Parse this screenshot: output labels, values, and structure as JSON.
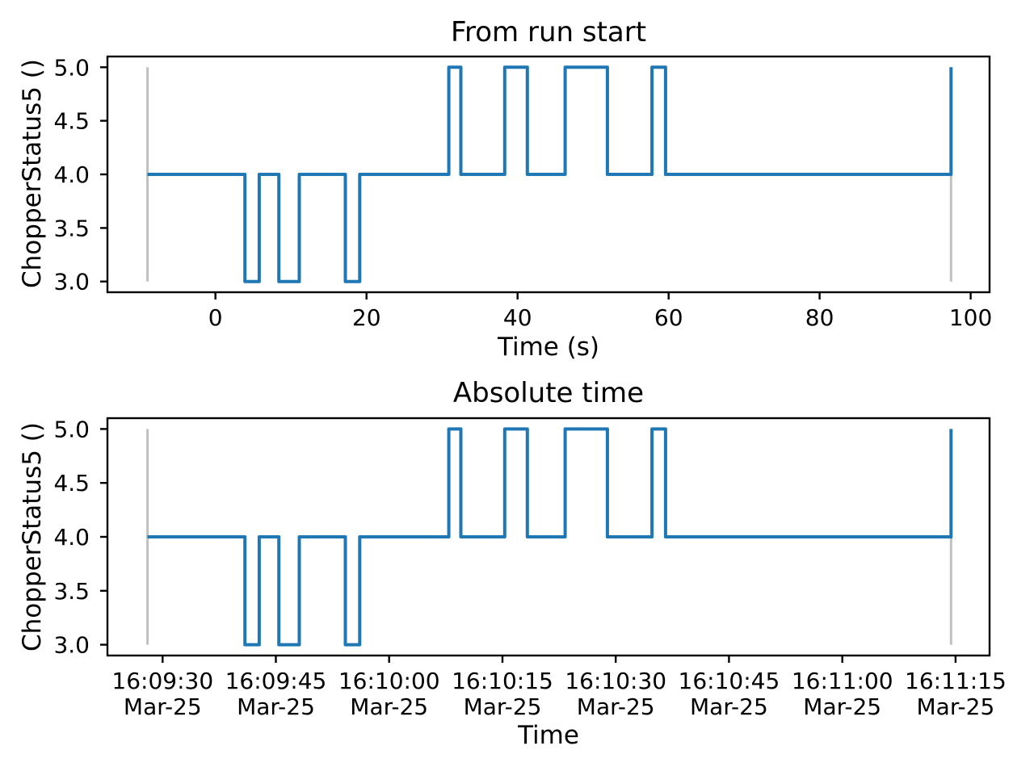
{
  "figure": {
    "background_color": "#ffffff",
    "axes_frame_color": "#000000",
    "text_color": "#000000",
    "series_color": "#1f77b4",
    "boundary_line_color": "#c0c0c0"
  },
  "chart_data": [
    {
      "type": "line",
      "line_style": "step",
      "title": "From run start",
      "xlabel": "Time (s)",
      "ylabel": "ChopperStatus5 ()",
      "xlim": [
        -14.3,
        102.5
      ],
      "ylim": [
        2.9,
        5.1
      ],
      "grid": false,
      "legend": "none",
      "xticks": {
        "values": [
          0,
          20,
          40,
          60,
          80,
          100
        ],
        "labels": [
          "0",
          "20",
          "40",
          "60",
          "80",
          "100"
        ]
      },
      "yticks": {
        "values": [
          5.0,
          4.5,
          4.0,
          3.5,
          3.0
        ],
        "labels": [
          "5.0",
          "4.5",
          "4.0",
          "3.5",
          "3.0"
        ]
      },
      "series": [
        {
          "name": "ChopperStatus5",
          "color": "#1f77b4",
          "points": [
            [
              -9.0,
              4
            ],
            [
              3.9,
              4
            ],
            [
              3.9,
              3
            ],
            [
              5.8,
              3
            ],
            [
              5.8,
              4
            ],
            [
              8.4,
              4
            ],
            [
              8.4,
              3
            ],
            [
              11.1,
              3
            ],
            [
              11.1,
              4
            ],
            [
              17.2,
              4
            ],
            [
              17.2,
              3
            ],
            [
              19.1,
              3
            ],
            [
              19.1,
              4
            ],
            [
              30.9,
              4
            ],
            [
              30.9,
              5
            ],
            [
              32.5,
              5
            ],
            [
              32.5,
              4
            ],
            [
              38.3,
              4
            ],
            [
              38.3,
              5
            ],
            [
              41.3,
              5
            ],
            [
              41.3,
              4
            ],
            [
              46.3,
              4
            ],
            [
              46.3,
              5
            ],
            [
              51.9,
              5
            ],
            [
              51.9,
              4
            ],
            [
              57.8,
              4
            ],
            [
              57.8,
              5
            ],
            [
              59.6,
              5
            ],
            [
              59.6,
              4
            ],
            [
              97.4,
              4
            ],
            [
              97.4,
              5
            ]
          ]
        }
      ],
      "boundary_vlines": {
        "x": [
          -9.0,
          97.4
        ],
        "y_span": [
          3.0,
          5.0
        ],
        "color": "#c0c0c0"
      }
    },
    {
      "type": "line",
      "line_style": "step",
      "title": "Absolute time",
      "xlabel": "Time",
      "ylabel": "ChopperStatus5 ()",
      "xlim": [
        -14.3,
        102.5
      ],
      "ylim": [
        2.9,
        5.1
      ],
      "grid": false,
      "legend": "none",
      "xticks": {
        "values": [
          -7,
          8,
          23,
          38,
          53,
          68,
          83,
          98
        ],
        "labels": [
          "16:09:30",
          "16:09:45",
          "16:10:00",
          "16:10:15",
          "16:10:30",
          "16:10:45",
          "16:11:00",
          "16:11:15"
        ],
        "sublabels": [
          "Mar-25",
          "Mar-25",
          "Mar-25",
          "Mar-25",
          "Mar-25",
          "Mar-25",
          "Mar-25",
          "Mar-25"
        ]
      },
      "yticks": {
        "values": [
          5.0,
          4.5,
          4.0,
          3.5,
          3.0
        ],
        "labels": [
          "5.0",
          "4.5",
          "4.0",
          "3.5",
          "3.0"
        ]
      },
      "series": [
        {
          "name": "ChopperStatus5",
          "color": "#1f77b4",
          "points": [
            [
              -9.0,
              4
            ],
            [
              3.9,
              4
            ],
            [
              3.9,
              3
            ],
            [
              5.8,
              3
            ],
            [
              5.8,
              4
            ],
            [
              8.4,
              4
            ],
            [
              8.4,
              3
            ],
            [
              11.1,
              3
            ],
            [
              11.1,
              4
            ],
            [
              17.2,
              4
            ],
            [
              17.2,
              3
            ],
            [
              19.1,
              3
            ],
            [
              19.1,
              4
            ],
            [
              30.9,
              4
            ],
            [
              30.9,
              5
            ],
            [
              32.5,
              5
            ],
            [
              32.5,
              4
            ],
            [
              38.3,
              4
            ],
            [
              38.3,
              5
            ],
            [
              41.3,
              5
            ],
            [
              41.3,
              4
            ],
            [
              46.3,
              4
            ],
            [
              46.3,
              5
            ],
            [
              51.9,
              5
            ],
            [
              51.9,
              4
            ],
            [
              57.8,
              4
            ],
            [
              57.8,
              5
            ],
            [
              59.6,
              5
            ],
            [
              59.6,
              4
            ],
            [
              97.4,
              4
            ],
            [
              97.4,
              5
            ]
          ]
        }
      ],
      "boundary_vlines": {
        "x": [
          -9.0,
          97.4
        ],
        "y_span": [
          3.0,
          5.0
        ],
        "color": "#c0c0c0"
      }
    }
  ]
}
